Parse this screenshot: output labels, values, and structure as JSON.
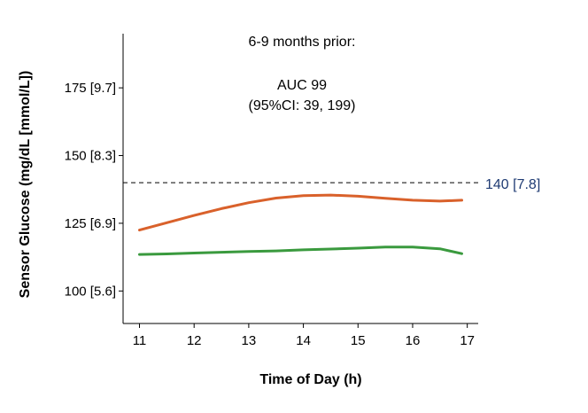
{
  "chart_data": {
    "type": "line",
    "xlabel": "Time of Day (h)",
    "ylabel": "Sensor Glucose (mg/dL [mmol/L])",
    "xlim": [
      10.7,
      17.2
    ],
    "ylim": [
      88,
      195
    ],
    "x_ticks": [
      11,
      12,
      13,
      14,
      15,
      16,
      17
    ],
    "x_tick_labels": [
      "11",
      "12",
      "13",
      "14",
      "15",
      "16",
      "17"
    ],
    "y_ticks": [
      100,
      125,
      150,
      175
    ],
    "y_tick_labels": [
      "100 [5.6]",
      "125 [6.9]",
      "150 [8.3]",
      "175 [9.7]"
    ],
    "annotations": [
      "6-9 months prior:",
      "AUC 99",
      "(95%CI: 39, 199)"
    ],
    "reference_line": {
      "y": 140,
      "label": "140 [7.8]",
      "style": "dashed",
      "color": "#000000"
    },
    "grid": false,
    "series": [
      {
        "color": "#d9612b",
        "x": [
          11,
          11.5,
          12,
          12.5,
          13,
          13.5,
          14,
          14.5,
          15,
          15.5,
          16,
          16.5,
          16.9
        ],
        "y": [
          122.5,
          125.2,
          127.9,
          130.4,
          132.6,
          134.3,
          135.2,
          135.4,
          135.0,
          134.2,
          133.5,
          133.2,
          133.5
        ]
      },
      {
        "color": "#3a9a3e",
        "x": [
          11,
          11.5,
          12,
          12.5,
          13,
          13.5,
          14,
          14.5,
          15,
          15.5,
          16,
          16.5,
          16.9
        ],
        "y": [
          113.5,
          113.7,
          114.0,
          114.3,
          114.6,
          114.8,
          115.2,
          115.5,
          115.8,
          116.2,
          116.2,
          115.6,
          113.8
        ]
      }
    ]
  }
}
